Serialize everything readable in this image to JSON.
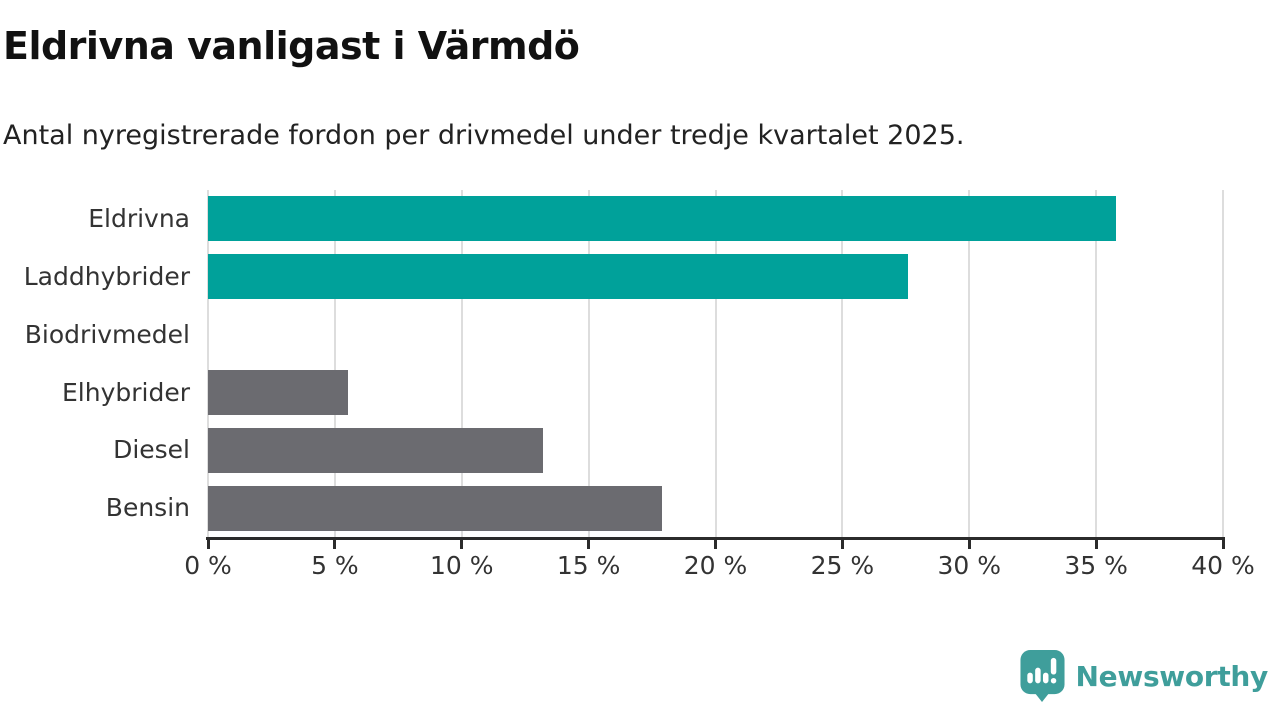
{
  "title": "Eldrivna vanligast i Värmdö",
  "subtitle": "Antal nyregistrerade fordon per drivmedel under tredje kvartalet 2025.",
  "colors": {
    "bar_teal": "#00a19a",
    "bar_gray": "#6b6b70",
    "gridline": "#dddddd",
    "axis": "#2b2b2b",
    "text": "#333333",
    "logo_teal": "#3f9e9b"
  },
  "chart_data": {
    "type": "bar",
    "orientation": "horizontal",
    "title": "Eldrivna vanligast i Värmdö",
    "subtitle": "Antal nyregistrerade fordon per drivmedel under tredje kvartalet 2025.",
    "categories": [
      "Eldrivna",
      "Laddhybrider",
      "Biodrivmedel",
      "Elhybrider",
      "Diesel",
      "Bensin"
    ],
    "values": [
      35.8,
      27.6,
      0,
      5.5,
      13.2,
      17.9
    ],
    "unit": "%",
    "bar_colors": [
      "teal",
      "teal",
      "teal",
      "gray",
      "gray",
      "gray"
    ],
    "xlim": [
      0,
      40
    ],
    "xticks": [
      0,
      5,
      10,
      15,
      20,
      25,
      30,
      35,
      40
    ],
    "xtick_labels": [
      "0 %",
      "5 %",
      "10 %",
      "15 %",
      "20 %",
      "25 %",
      "30 %",
      "35 %",
      "40 %"
    ],
    "grid": true,
    "legend": "none"
  },
  "footer": {
    "brand": "Newsworthy",
    "logo_icon": "newsworthy-speech-bubble-bar-chart-icon"
  }
}
